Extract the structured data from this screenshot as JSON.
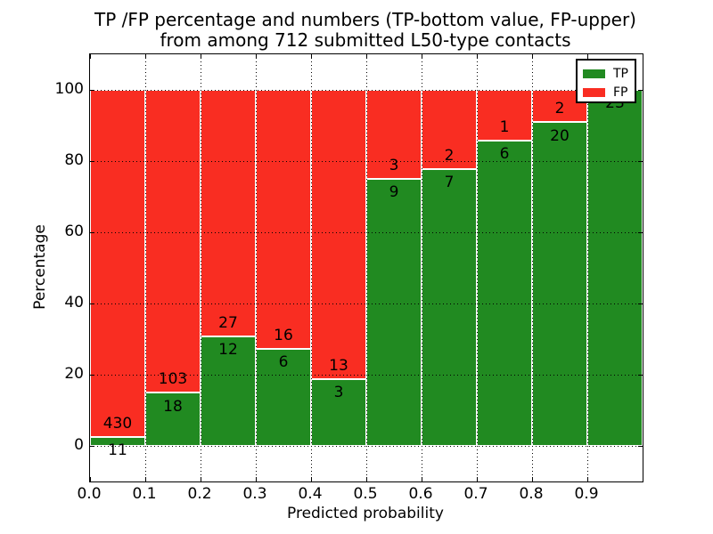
{
  "title": {
    "line1": "TP /FP percentage and numbers (TP-bottom value, FP-upper)",
    "line2": "from among 712 submitted L50-type contacts"
  },
  "axis_labels": {
    "x": "Predicted probability",
    "y": "Percentage"
  },
  "legend": {
    "position": "upper right",
    "items": [
      {
        "label": "TP",
        "color": "#218a21"
      },
      {
        "label": "FP",
        "color": "#f92d22"
      }
    ]
  },
  "chart_data": {
    "type": "bar",
    "stacked": true,
    "normalized": "each bin stacks to 100%",
    "title": "TP /FP percentage and numbers (TP-bottom value, FP-upper) from among 712 submitted L50-type contacts",
    "xlabel": "Predicted probability",
    "ylabel": "Percentage",
    "xlim": [
      0.0,
      1.0
    ],
    "ylim": [
      -10,
      110
    ],
    "grid": "dotted black, both axes, drawn over bars",
    "bar_edge_color": "#ffffff",
    "x_tick_labels": [
      "0.0",
      "0.1",
      "0.2",
      "0.3",
      "0.4",
      "0.5",
      "0.6",
      "0.7",
      "0.8",
      "0.9"
    ],
    "y_tick_labels": [
      "0",
      "20",
      "40",
      "60",
      "80",
      "100"
    ],
    "total_contacts": 712,
    "series": [
      {
        "name": "TP",
        "color": "#218a21",
        "position": "bottom"
      },
      {
        "name": "FP",
        "color": "#f92d22",
        "position": "top"
      }
    ],
    "bars": [
      {
        "x0": 0.0,
        "x1": 0.1,
        "tp": 11,
        "fp": 430,
        "tp_percent": 2.49
      },
      {
        "x0": 0.1,
        "x1": 0.2,
        "tp": 18,
        "fp": 103,
        "tp_percent": 14.88
      },
      {
        "x0": 0.2,
        "x1": 0.3,
        "tp": 12,
        "fp": 27,
        "tp_percent": 30.77
      },
      {
        "x0": 0.3,
        "x1": 0.4,
        "tp": 6,
        "fp": 16,
        "tp_percent": 27.27
      },
      {
        "x0": 0.4,
        "x1": 0.5,
        "tp": 3,
        "fp": 13,
        "tp_percent": 18.75
      },
      {
        "x0": 0.5,
        "x1": 0.6,
        "tp": 9,
        "fp": 3,
        "tp_percent": 75.0
      },
      {
        "x0": 0.6,
        "x1": 0.7,
        "tp": 7,
        "fp": 2,
        "tp_percent": 77.78
      },
      {
        "x0": 0.7,
        "x1": 0.8,
        "tp": 6,
        "fp": 1,
        "tp_percent": 85.71
      },
      {
        "x0": 0.8,
        "x1": 0.9,
        "tp": 20,
        "fp": 2,
        "tp_percent": 90.91
      },
      {
        "x0": 0.9,
        "x1": 1.0,
        "tp": 23,
        "fp": 0,
        "tp_percent": 100.0
      }
    ]
  }
}
